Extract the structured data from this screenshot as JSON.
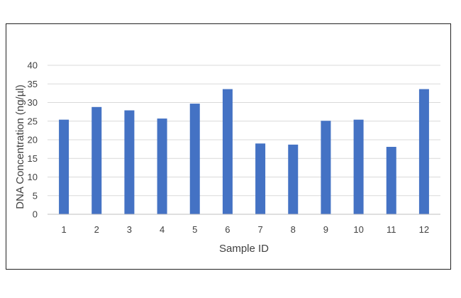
{
  "chart_data": {
    "type": "bar",
    "title": "",
    "xlabel": "Sample ID",
    "ylabel": "DNA Concentration (ng/µl)",
    "categories": [
      "1",
      "2",
      "3",
      "4",
      "5",
      "6",
      "7",
      "8",
      "9",
      "10",
      "11",
      "12"
    ],
    "values": [
      25.4,
      28.8,
      27.9,
      25.7,
      29.7,
      33.6,
      19.0,
      18.7,
      25.1,
      25.4,
      18.1,
      33.6
    ],
    "ylim": [
      0,
      40
    ],
    "yticks": [
      0,
      5,
      10,
      15,
      20,
      25,
      30,
      35,
      40
    ],
    "grid": true,
    "legend": "none",
    "bar_color": "#4472C4",
    "grid_color": "#d9d9d9",
    "text_color": "#404040",
    "frame_color": "#222222"
  }
}
